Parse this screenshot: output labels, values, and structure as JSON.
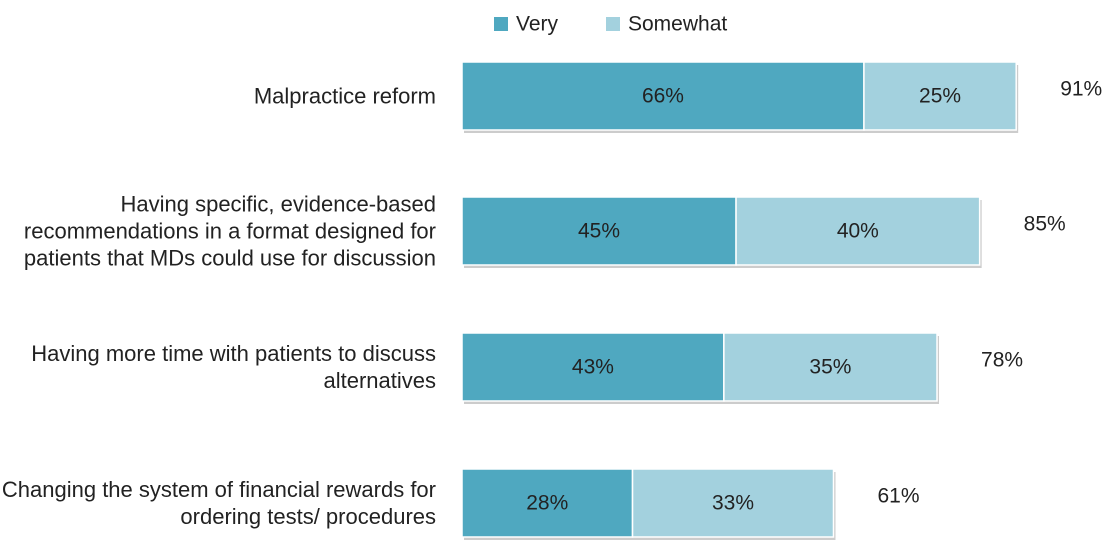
{
  "chart_data": {
    "type": "stacked_barh",
    "categories": [
      "Malpractice reform",
      "Having specific, evidence-based recommendations in a format designed for patients that MDs could use for discussion",
      "Having more time with patients to discuss alternatives",
      "Changing the system of financial rewards for ordering tests/ procedures"
    ],
    "series": [
      {
        "name": "Very",
        "color": "#4fa8c0",
        "values": [
          66,
          45,
          43,
          28
        ],
        "value_labels": [
          "66%",
          "45%",
          "43%",
          "28%"
        ]
      },
      {
        "name": "Somewhat",
        "color": "#a3d1de",
        "values": [
          25,
          40,
          35,
          33
        ],
        "value_labels": [
          "25%",
          "40%",
          "35%",
          "33%"
        ]
      }
    ],
    "totals": [
      91,
      85,
      78,
      61
    ],
    "total_labels": [
      "91%",
      "85%",
      "78%",
      "61%"
    ],
    "xlim": [
      0,
      100
    ],
    "legend": "top"
  }
}
